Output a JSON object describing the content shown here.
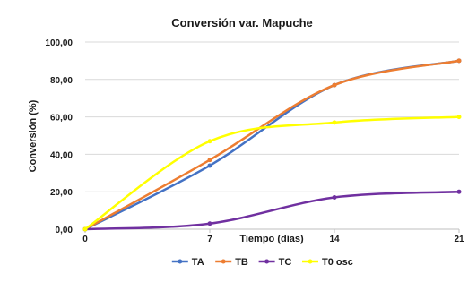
{
  "chart_data": {
    "type": "line",
    "title": "Conversión var. Mapuche",
    "xlabel": "Tiempo (días)",
    "ylabel": "Conversión (%)",
    "x": [
      0,
      7,
      14,
      21
    ],
    "x_tick_labels": [
      "0",
      "7",
      "14",
      "21"
    ],
    "y_tick_labels": [
      "0,00",
      "20,00",
      "40,00",
      "60,00",
      "80,00",
      "100,00"
    ],
    "ylim": [
      0,
      100
    ],
    "xlim": [
      0,
      21
    ],
    "grid": true,
    "legend_position": "bottom",
    "series": [
      {
        "name": "TA",
        "color": "#4472c4",
        "values": [
          0,
          34,
          77,
          90
        ]
      },
      {
        "name": "TB",
        "color": "#ed7d31",
        "values": [
          0,
          37,
          77,
          90
        ]
      },
      {
        "name": "TC",
        "color": "#7030a0",
        "values": [
          0,
          3,
          17,
          20
        ]
      },
      {
        "name": "T0 osc",
        "color": "#ffff00",
        "values": [
          0,
          47,
          57,
          60
        ]
      }
    ]
  }
}
